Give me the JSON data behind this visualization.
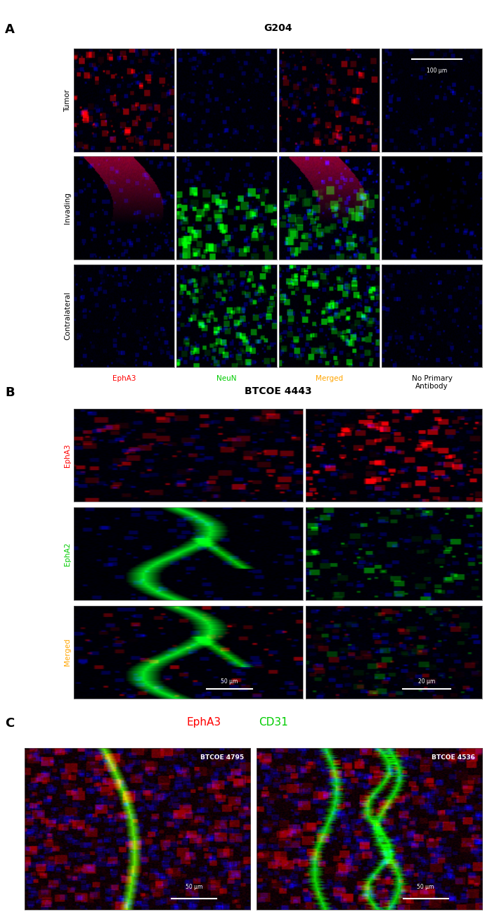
{
  "panel_A_title": "G204",
  "panel_B_title": "BTCOE 4443",
  "panel_A_label": "A",
  "panel_B_label": "B",
  "panel_C_label": "C",
  "row_labels_A": [
    "Tumor",
    "Invading",
    "Contralateral"
  ],
  "col_labels_A": [
    "EphA3",
    "NeuN",
    "Merged",
    "No Primary\nAntibody"
  ],
  "col_label_colors_A": [
    "#ff0000",
    "#00cc00",
    "#ffa500",
    "#000000"
  ],
  "row_labels_B": [
    "EphA3",
    "EphA2",
    "Merged"
  ],
  "row_label_colors_B": [
    "#ff0000",
    "#00cc00",
    "#ffa500"
  ],
  "C_labels": [
    "BTCOE 4795",
    "BTCOE 4536"
  ],
  "bg_color": "#ffffff",
  "scalebar_text_A": "100 μm",
  "scalebar_text_B1": "50 μm",
  "scalebar_text_B2": "20 μm",
  "scalebar_text_C": "50 μm",
  "EphA3_color": "#ff0000",
  "CD31_color": "#00cc00"
}
